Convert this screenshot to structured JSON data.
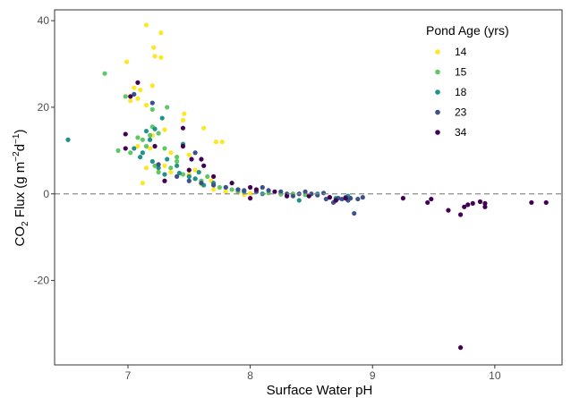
{
  "chart_data": {
    "type": "scatter",
    "xlabel": "Surface Water pH",
    "ylabel_parts": {
      "co": "CO",
      "co_sub": "2",
      "flux": " Flux (g  m",
      "m_exp": "−2",
      "d": "d",
      "d_exp": "−1",
      "close": ")"
    },
    "xlim": [
      6.4,
      10.55
    ],
    "ylim": [
      -39.5,
      42.5
    ],
    "xticks": [
      7,
      8,
      9,
      10
    ],
    "xtick_labels": [
      "7",
      "8",
      "9",
      "10"
    ],
    "yticks": [
      40,
      20,
      0,
      -20
    ],
    "ytick_labels": [
      "40",
      "20",
      "0",
      "-20"
    ],
    "reference_line": {
      "y": 0,
      "style": "dashed",
      "color": "#8c8c8c"
    },
    "grid": false,
    "legend": {
      "title": "Pond Age (yrs)",
      "position": "top-right"
    },
    "series": [
      {
        "name": "14",
        "color": "#FDE725",
        "points": [
          [
            7.15,
            39.0
          ],
          [
            7.27,
            37.2
          ],
          [
            7.21,
            33.8
          ],
          [
            7.22,
            31.8
          ],
          [
            7.27,
            31.5
          ],
          [
            6.99,
            30.5
          ],
          [
            7.05,
            24.5
          ],
          [
            7.1,
            24.0
          ],
          [
            7.2,
            25.0
          ],
          [
            7.02,
            21.5
          ],
          [
            7.15,
            20.5
          ],
          [
            7.08,
            22.0
          ],
          [
            7.46,
            18.5
          ],
          [
            7.45,
            17.0
          ],
          [
            7.62,
            15.2
          ],
          [
            7.2,
            13.5
          ],
          [
            7.3,
            14.8
          ],
          [
            7.08,
            11.0
          ],
          [
            7.18,
            10.5
          ],
          [
            7.72,
            12.0
          ],
          [
            7.77,
            12.0
          ],
          [
            7.35,
            9.5
          ],
          [
            7.5,
            9.0
          ],
          [
            7.4,
            7.5
          ],
          [
            7.3,
            6.5
          ],
          [
            7.15,
            6.0
          ],
          [
            7.25,
            5.2
          ],
          [
            7.35,
            5.0
          ],
          [
            7.55,
            5.5
          ],
          [
            7.12,
            2.5
          ],
          [
            7.6,
            2.2
          ],
          [
            7.7,
            1.0
          ],
          [
            7.8,
            0.5
          ],
          [
            7.9,
            0.3
          ],
          [
            8.0,
            0.1
          ],
          [
            7.95,
            -0.2
          ],
          [
            7.5,
            4.5
          ],
          [
            7.68,
            3.0
          ]
        ]
      },
      {
        "name": "15",
        "color": "#5EC962",
        "points": [
          [
            6.81,
            27.8
          ],
          [
            6.98,
            22.5
          ],
          [
            7.2,
            19.5
          ],
          [
            7.32,
            20.0
          ],
          [
            7.2,
            15.5
          ],
          [
            7.25,
            14.0
          ],
          [
            7.18,
            13.5
          ],
          [
            7.12,
            12.5
          ],
          [
            7.15,
            11.0
          ],
          [
            7.3,
            10.5
          ],
          [
            6.92,
            10.0
          ],
          [
            7.02,
            9.5
          ],
          [
            7.4,
            8.5
          ],
          [
            7.4,
            7.5
          ],
          [
            7.22,
            6.5
          ],
          [
            7.25,
            5.0
          ],
          [
            7.45,
            4.5
          ],
          [
            7.5,
            4.0
          ],
          [
            7.55,
            3.5
          ],
          [
            7.6,
            3.0
          ],
          [
            7.7,
            2.2
          ],
          [
            7.75,
            1.5
          ],
          [
            7.85,
            1.0
          ],
          [
            7.9,
            0.5
          ],
          [
            8.05,
            0.5
          ],
          [
            8.15,
            0.2
          ],
          [
            8.25,
            -0.1
          ],
          [
            8.35,
            0.0
          ],
          [
            8.45,
            -0.2
          ],
          [
            7.65,
            4.0
          ],
          [
            7.35,
            6.0
          ],
          [
            7.08,
            13.0
          ]
        ]
      },
      {
        "name": "18",
        "color": "#21918C",
        "points": [
          [
            6.51,
            12.5
          ],
          [
            7.28,
            17.5
          ],
          [
            7.22,
            15.0
          ],
          [
            7.15,
            14.5
          ],
          [
            7.18,
            12.5
          ],
          [
            7.45,
            11.5
          ],
          [
            7.05,
            10.5
          ],
          [
            7.12,
            9.5
          ],
          [
            7.1,
            8.5
          ],
          [
            7.32,
            8.0
          ],
          [
            7.2,
            7.5
          ],
          [
            7.4,
            6.5
          ],
          [
            7.25,
            6.0
          ],
          [
            7.3,
            4.5
          ],
          [
            7.5,
            4.0
          ],
          [
            7.55,
            3.5
          ],
          [
            7.6,
            2.5
          ],
          [
            7.8,
            1.5
          ],
          [
            7.9,
            1.0
          ],
          [
            7.95,
            0.5
          ],
          [
            8.1,
            0.0
          ],
          [
            8.3,
            -0.5
          ],
          [
            8.4,
            -1.5
          ],
          [
            8.55,
            0.0
          ],
          [
            8.7,
            -1.0
          ],
          [
            8.8,
            -0.5
          ],
          [
            7.7,
            2.5
          ],
          [
            7.58,
            5.0
          ],
          [
            7.42,
            4.8
          ],
          [
            7.62,
            2.0
          ]
        ]
      },
      {
        "name": "23",
        "color": "#3B528B",
        "points": [
          [
            7.05,
            23.0
          ],
          [
            7.2,
            21.0
          ],
          [
            7.55,
            9.5
          ],
          [
            7.25,
            6.8
          ],
          [
            7.4,
            4.0
          ],
          [
            7.5,
            3.0
          ],
          [
            7.6,
            2.5
          ],
          [
            7.7,
            2.0
          ],
          [
            7.8,
            1.5
          ],
          [
            7.9,
            1.0
          ],
          [
            7.95,
            0.8
          ],
          [
            8.05,
            0.5
          ],
          [
            8.1,
            1.5
          ],
          [
            8.15,
            0.8
          ],
          [
            8.25,
            0.5
          ],
          [
            8.3,
            0.0
          ],
          [
            8.35,
            -0.5
          ],
          [
            8.4,
            0.0
          ],
          [
            8.45,
            0.5
          ],
          [
            8.5,
            0.0
          ],
          [
            8.55,
            -0.3
          ],
          [
            8.6,
            0.2
          ],
          [
            8.65,
            -0.8
          ],
          [
            8.7,
            -1.5
          ],
          [
            8.72,
            -1.0
          ],
          [
            8.75,
            -1.2
          ],
          [
            8.78,
            -0.8
          ],
          [
            8.8,
            -1.5
          ],
          [
            8.82,
            -1.0
          ],
          [
            8.85,
            -4.5
          ],
          [
            8.88,
            -1.2
          ],
          [
            8.92,
            -0.8
          ],
          [
            8.68,
            -2.0
          ],
          [
            8.62,
            -1.2
          ]
        ]
      },
      {
        "name": "34",
        "color": "#440154",
        "points": [
          [
            7.08,
            25.7
          ],
          [
            7.02,
            22.5
          ],
          [
            6.98,
            13.8
          ],
          [
            7.45,
            15.2
          ],
          [
            7.45,
            11.0
          ],
          [
            6.98,
            10.5
          ],
          [
            7.22,
            11.0
          ],
          [
            7.52,
            8.0
          ],
          [
            7.6,
            8.0
          ],
          [
            7.62,
            6.5
          ],
          [
            7.5,
            5.5
          ],
          [
            7.3,
            3.0
          ],
          [
            7.7,
            4.0
          ],
          [
            7.85,
            2.5
          ],
          [
            8.0,
            1.5
          ],
          [
            8.05,
            1.0
          ],
          [
            8.2,
            0.5
          ],
          [
            8.3,
            -0.5
          ],
          [
            8.0,
            -1.0
          ],
          [
            8.48,
            -0.5
          ],
          [
            8.65,
            -0.8
          ],
          [
            8.7,
            -1.5
          ],
          [
            8.78,
            -1.0
          ],
          [
            9.25,
            -1.0
          ],
          [
            9.45,
            -2.0
          ],
          [
            9.48,
            -1.2
          ],
          [
            9.62,
            -3.8
          ],
          [
            9.72,
            -4.8
          ],
          [
            9.75,
            -3.0
          ],
          [
            9.78,
            -2.5
          ],
          [
            9.82,
            -2.2
          ],
          [
            9.88,
            -1.8
          ],
          [
            9.92,
            -3.0
          ],
          [
            9.92,
            -2.2
          ],
          [
            10.3,
            -2.0
          ],
          [
            10.42,
            -2.0
          ],
          [
            9.72,
            -35.5
          ]
        ]
      }
    ]
  }
}
